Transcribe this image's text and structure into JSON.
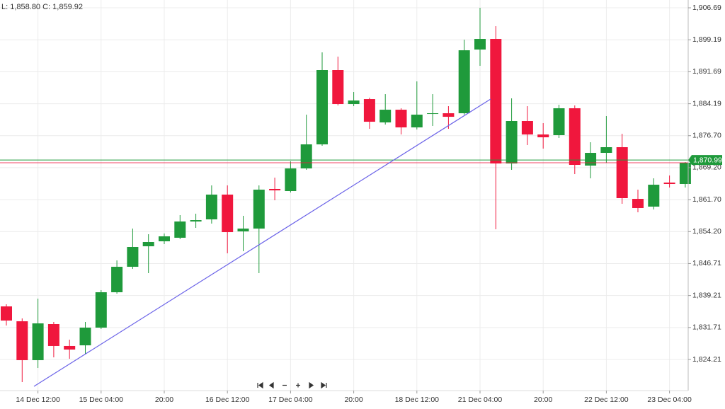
{
  "chart_data": {
    "type": "candlestick",
    "info_text": "L: 1,858.80 C: 1,859.92",
    "categories": [
      null,
      null,
      "14 Dec 12:00",
      null,
      null,
      null,
      "15 Dec 04:00",
      null,
      null,
      null,
      "20:00",
      null,
      null,
      null,
      "16 Dec 12:00",
      null,
      null,
      null,
      "17 Dec 04:00",
      null,
      null,
      null,
      "20:00",
      null,
      null,
      null,
      "18 Dec 12:00",
      null,
      null,
      null,
      "21 Dec 04:00",
      null,
      null,
      null,
      "20:00",
      null,
      null,
      null,
      "22 Dec 12:00",
      null,
      null,
      null,
      "23 Dec 04:00",
      null
    ],
    "open": [
      1836.66,
      1833.17,
      1824.05,
      1832.51,
      1827.37,
      1827.53,
      1831.68,
      1839.98,
      1845.95,
      1850.76,
      1851.93,
      1852.76,
      1856.57,
      1857.07,
      1862.88,
      1854.25,
      1854.91,
      1864.21,
      1863.71,
      1869.02,
      1874.66,
      1892.09,
      1884.12,
      1885.28,
      1879.81,
      1882.79,
      1878.64,
      1881.8,
      1881.96,
      1881.96,
      1896.9,
      1899.39,
      1870.18,
      1880.14,
      1876.98,
      1876.82,
      1883.13,
      1869.68,
      1872.67,
      1874.0,
      1861.88,
      1860.06,
      1865.7,
      1865.37
    ],
    "high": [
      1837.16,
      1833.84,
      1838.48,
      1833.01,
      1828.86,
      1833.01,
      1840.48,
      1847.45,
      1854.91,
      1853.59,
      1853.75,
      1858.07,
      1858.4,
      1865.04,
      1865.04,
      1857.9,
      1865.04,
      1866.86,
      1870.68,
      1881.63,
      1896.24,
      1895.24,
      1886.94,
      1885.61,
      1886.44,
      1883.13,
      1889.43,
      1886.44,
      1883.62,
      1899.22,
      1906.69,
      1902.38,
      1885.45,
      1883.62,
      1879.64,
      1883.95,
      1883.79,
      1875.16,
      1881.3,
      1877.15,
      1864.04,
      1866.7,
      1867.36,
      1870.51
    ],
    "low": [
      1832.18,
      1818.9,
      1822.22,
      1824.71,
      1824.38,
      1825.54,
      1831.35,
      1839.65,
      1845.45,
      1844.46,
      1851.26,
      1852.42,
      1855.08,
      1856.08,
      1849.11,
      1849.6,
      1844.46,
      1861.55,
      1863.38,
      1868.69,
      1874.33,
      1883.79,
      1883.62,
      1878.31,
      1879.31,
      1876.98,
      1878.15,
      1878.98,
      1878.31,
      1881.63,
      1893.08,
      1854.75,
      1868.69,
      1874.5,
      1873.67,
      1876.16,
      1867.69,
      1866.7,
      1870.35,
      1860.72,
      1858.73,
      1859.39,
      1864.54,
      1864.54
    ],
    "close": [
      1833.34,
      1824.05,
      1832.68,
      1827.37,
      1826.54,
      1831.68,
      1839.98,
      1845.95,
      1850.6,
      1851.76,
      1853.09,
      1856.57,
      1856.9,
      1862.88,
      1854.08,
      1854.91,
      1864.04,
      1863.87,
      1869.02,
      1874.66,
      1892.09,
      1884.12,
      1884.95,
      1879.97,
      1882.79,
      1878.64,
      1881.63,
      1881.96,
      1881.13,
      1896.73,
      1899.39,
      1870.18,
      1880.14,
      1876.98,
      1876.32,
      1883.13,
      1869.85,
      1872.67,
      1874.0,
      1862.05,
      1859.73,
      1865.2,
      1865.37,
      1870.35
    ],
    "up_color": "#1f9a3b",
    "down_color": "#f0173d",
    "info_color": "#e8173d",
    "ylim": [
      1816.91,
      1908.52
    ],
    "yticks": [
      {
        "value": 1824.21,
        "label": "1,824.21"
      },
      {
        "value": 1831.71,
        "label": "1,831.71"
      },
      {
        "value": 1839.21,
        "label": "1,839.21"
      },
      {
        "value": 1846.71,
        "label": "1,846.71"
      },
      {
        "value": 1854.2,
        "label": "1,854.20"
      },
      {
        "value": 1861.7,
        "label": "1,861.70"
      },
      {
        "value": 1869.2,
        "label": "1,869.20"
      },
      {
        "value": 1876.7,
        "label": "1,876.70"
      },
      {
        "value": 1884.19,
        "label": "1,884.19"
      },
      {
        "value": 1891.69,
        "label": "1,891.69"
      },
      {
        "value": 1899.19,
        "label": "1,899.19"
      },
      {
        "value": 1906.69,
        "label": "1,906.69"
      }
    ],
    "grid": true,
    "last_price": {
      "value": 1870.99,
      "label": "1,870.99"
    }
  }
}
